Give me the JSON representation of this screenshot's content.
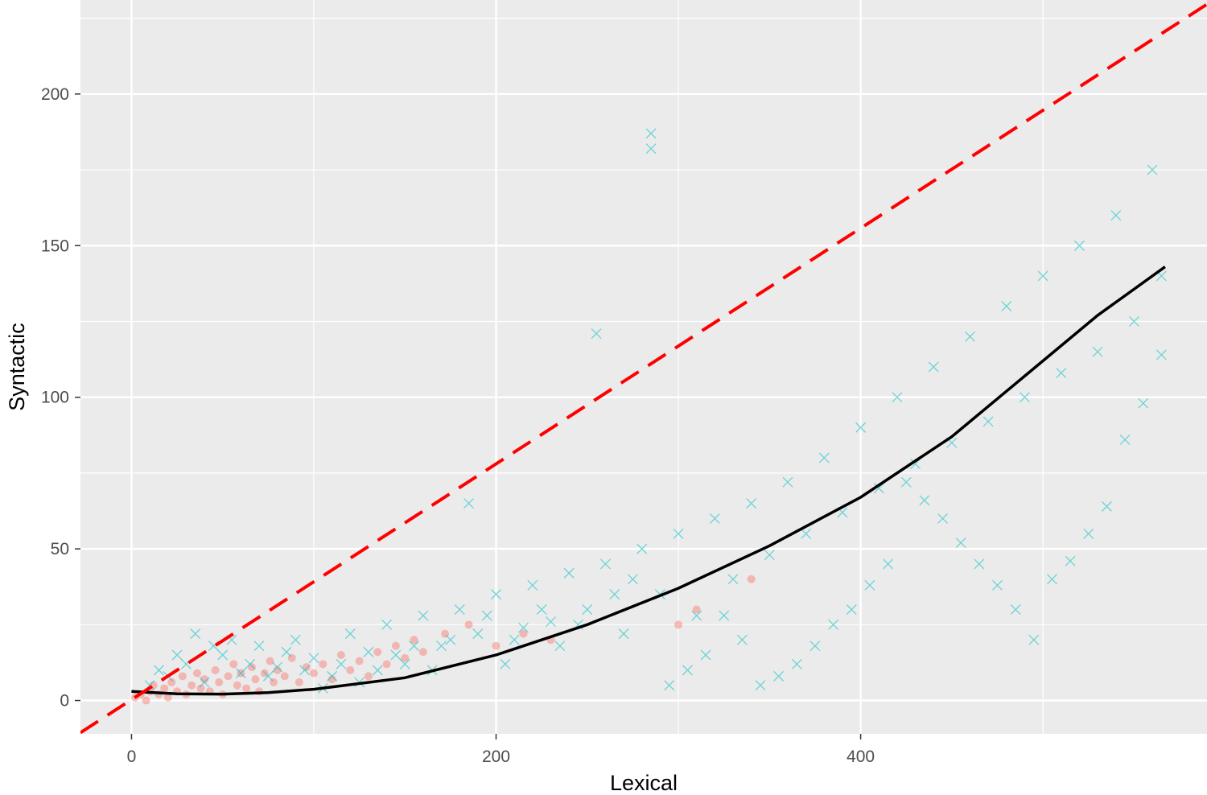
{
  "chart_data": {
    "type": "scatter",
    "xlabel": "Lexical",
    "ylabel": "Syntactic",
    "xlim": [
      -28,
      590
    ],
    "ylim": [
      -11,
      231
    ],
    "x_ticks": [
      0,
      200,
      400
    ],
    "x_tick_labels": [
      "0",
      "200",
      "400"
    ],
    "y_ticks": [
      0,
      50,
      100,
      150,
      200
    ],
    "y_tick_labels": [
      "0",
      "50",
      "100",
      "150",
      "200"
    ],
    "grid": true,
    "legend": "none",
    "colors": {
      "panel_background": "#ebebeb",
      "grid": "#ffffff",
      "series_a": "#f8766d",
      "series_b": "#00bfc4",
      "smooth_line": "#000000",
      "reference_line": "#ff0000"
    },
    "series": [
      {
        "marker": "circle",
        "color": "#f8766d",
        "description_range": {
          "x": [
            0,
            160
          ],
          "y": [
            0,
            30
          ]
        },
        "points": [
          [
            2,
            1
          ],
          [
            5,
            2
          ],
          [
            8,
            0
          ],
          [
            10,
            3
          ],
          [
            12,
            5
          ],
          [
            15,
            2
          ],
          [
            18,
            4
          ],
          [
            20,
            1
          ],
          [
            22,
            6
          ],
          [
            25,
            3
          ],
          [
            28,
            8
          ],
          [
            30,
            2
          ],
          [
            33,
            5
          ],
          [
            36,
            9
          ],
          [
            38,
            4
          ],
          [
            40,
            7
          ],
          [
            43,
            3
          ],
          [
            46,
            10
          ],
          [
            48,
            6
          ],
          [
            50,
            2
          ],
          [
            53,
            8
          ],
          [
            56,
            12
          ],
          [
            58,
            5
          ],
          [
            60,
            9
          ],
          [
            63,
            4
          ],
          [
            66,
            11
          ],
          [
            68,
            7
          ],
          [
            70,
            3
          ],
          [
            73,
            9
          ],
          [
            76,
            13
          ],
          [
            78,
            6
          ],
          [
            80,
            10
          ],
          [
            84,
            8
          ],
          [
            88,
            14
          ],
          [
            92,
            6
          ],
          [
            96,
            11
          ],
          [
            100,
            9
          ],
          [
            105,
            12
          ],
          [
            110,
            7
          ],
          [
            115,
            15
          ],
          [
            120,
            10
          ],
          [
            125,
            13
          ],
          [
            130,
            8
          ],
          [
            135,
            16
          ],
          [
            140,
            12
          ],
          [
            145,
            18
          ],
          [
            150,
            14
          ],
          [
            155,
            20
          ],
          [
            160,
            16
          ],
          [
            172,
            22
          ],
          [
            185,
            25
          ],
          [
            200,
            18
          ],
          [
            215,
            22
          ],
          [
            230,
            20
          ],
          [
            300,
            25
          ],
          [
            310,
            30
          ],
          [
            340,
            40
          ]
        ]
      },
      {
        "marker": "x",
        "color": "#00bfc4",
        "description_range": {
          "x": [
            0,
            570
          ],
          "y": [
            0,
            220
          ]
        },
        "points": [
          [
            10,
            5
          ],
          [
            20,
            8
          ],
          [
            30,
            12
          ],
          [
            40,
            6
          ],
          [
            50,
            15
          ],
          [
            60,
            9
          ],
          [
            70,
            18
          ],
          [
            80,
            11
          ],
          [
            90,
            20
          ],
          [
            100,
            14
          ],
          [
            110,
            8
          ],
          [
            120,
            22
          ],
          [
            130,
            16
          ],
          [
            140,
            25
          ],
          [
            150,
            12
          ],
          [
            160,
            28
          ],
          [
            170,
            18
          ],
          [
            180,
            30
          ],
          [
            190,
            22
          ],
          [
            200,
            35
          ],
          [
            210,
            20
          ],
          [
            220,
            38
          ],
          [
            230,
            26
          ],
          [
            240,
            42
          ],
          [
            250,
            30
          ],
          [
            260,
            45
          ],
          [
            270,
            22
          ],
          [
            280,
            50
          ],
          [
            285,
            187
          ],
          [
            285,
            182
          ],
          [
            290,
            35
          ],
          [
            300,
            55
          ],
          [
            310,
            28
          ],
          [
            320,
            60
          ],
          [
            330,
            40
          ],
          [
            340,
            65
          ],
          [
            350,
            48
          ],
          [
            360,
            72
          ],
          [
            370,
            55
          ],
          [
            380,
            80
          ],
          [
            390,
            62
          ],
          [
            400,
            90
          ],
          [
            410,
            70
          ],
          [
            420,
            100
          ],
          [
            430,
            78
          ],
          [
            440,
            110
          ],
          [
            450,
            85
          ],
          [
            460,
            120
          ],
          [
            470,
            92
          ],
          [
            480,
            130
          ],
          [
            490,
            100
          ],
          [
            500,
            140
          ],
          [
            510,
            108
          ],
          [
            520,
            150
          ],
          [
            530,
            115
          ],
          [
            540,
            160
          ],
          [
            550,
            125
          ],
          [
            560,
            175
          ],
          [
            565,
            114
          ],
          [
            565,
            140
          ],
          [
            555,
            98
          ],
          [
            545,
            86
          ],
          [
            535,
            64
          ],
          [
            525,
            55
          ],
          [
            515,
            46
          ],
          [
            505,
            40
          ],
          [
            495,
            20
          ],
          [
            485,
            30
          ],
          [
            475,
            38
          ],
          [
            465,
            45
          ],
          [
            455,
            52
          ],
          [
            445,
            60
          ],
          [
            435,
            66
          ],
          [
            425,
            72
          ],
          [
            415,
            45
          ],
          [
            405,
            38
          ],
          [
            395,
            30
          ],
          [
            385,
            25
          ],
          [
            375,
            18
          ],
          [
            365,
            12
          ],
          [
            355,
            8
          ],
          [
            345,
            5
          ],
          [
            335,
            20
          ],
          [
            325,
            28
          ],
          [
            315,
            15
          ],
          [
            305,
            10
          ],
          [
            295,
            5
          ],
          [
            275,
            40
          ],
          [
            265,
            35
          ],
          [
            255,
            121
          ],
          [
            245,
            25
          ],
          [
            235,
            18
          ],
          [
            225,
            30
          ],
          [
            215,
            24
          ],
          [
            205,
            12
          ],
          [
            195,
            28
          ],
          [
            185,
            65
          ],
          [
            175,
            20
          ],
          [
            165,
            10
          ],
          [
            155,
            18
          ],
          [
            145,
            15
          ],
          [
            135,
            10
          ],
          [
            125,
            6
          ],
          [
            115,
            12
          ],
          [
            105,
            4
          ],
          [
            95,
            10
          ],
          [
            85,
            16
          ],
          [
            75,
            8
          ],
          [
            65,
            12
          ],
          [
            55,
            20
          ],
          [
            45,
            18
          ],
          [
            35,
            22
          ],
          [
            25,
            15
          ],
          [
            15,
            10
          ]
        ]
      }
    ],
    "smooth_line": {
      "x": [
        0,
        25,
        50,
        75,
        100,
        150,
        200,
        250,
        300,
        350,
        400,
        450,
        500,
        530,
        567
      ],
      "y": [
        3,
        2.2,
        2.1,
        2.6,
        3.7,
        7.5,
        15,
        25,
        37,
        51,
        67,
        87,
        112,
        127,
        143
      ]
    },
    "reference_line": {
      "x": [
        -28,
        590
      ],
      "y": [
        -10.6,
        229.6
      ]
    }
  }
}
